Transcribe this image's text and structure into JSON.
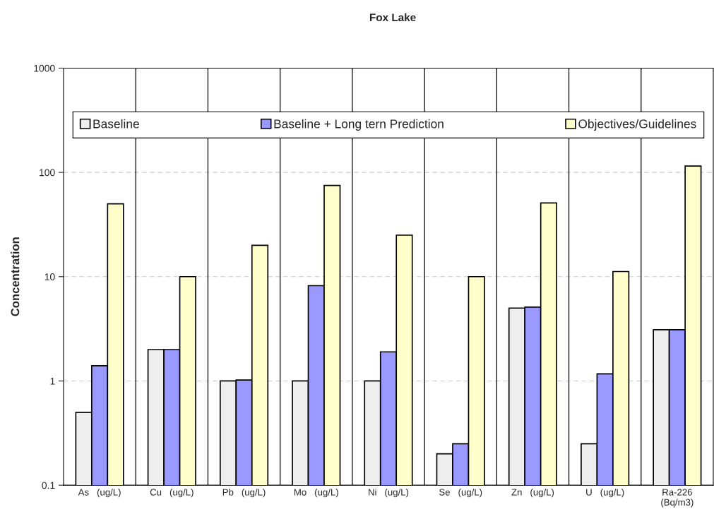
{
  "chart_data": {
    "type": "bar",
    "title": "Fox Lake",
    "ylabel": "Concentration",
    "categories": [
      "As   (ug/L)",
      "Cu   (ug/L)",
      "Pb   (ug/L)",
      "Mo   (ug/L)",
      "Ni   (ug/L)",
      "Se   (ug/L)",
      "Zn   (ug/L)",
      "U   (ug/L)",
      "Ra-226\n(Bq/m3)"
    ],
    "series": [
      {
        "name": "Baseline",
        "color": "#eeeeee",
        "values": [
          0.5,
          2,
          1,
          1,
          1,
          0.2,
          5,
          0.25,
          3.1
        ]
      },
      {
        "name": "Baseline + Long tern Prediction",
        "color": "#9999ff",
        "values": [
          1.4,
          2,
          1.02,
          8.2,
          1.9,
          0.25,
          5.1,
          1.17,
          3.1
        ]
      },
      {
        "name": "Objectives/Guidelines",
        "color": "#ffffcc",
        "values": [
          50,
          10,
          20,
          75,
          25,
          10,
          51,
          11.2,
          115
        ]
      }
    ],
    "log": true,
    "ylim": [
      0.1,
      1000
    ],
    "yticks": [
      0.1,
      1,
      10,
      100,
      1000
    ],
    "grid": true,
    "legend": "top"
  }
}
